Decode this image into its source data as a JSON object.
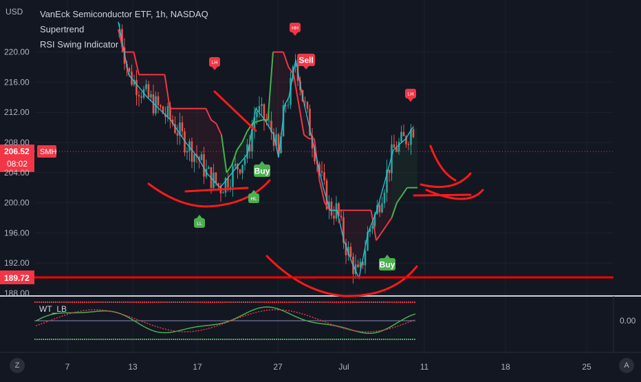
{
  "currency": "USD",
  "legend": {
    "symbol_line": "VanEck Semiconductor ETF, 1h, NASDAQ",
    "study1": "Supertrend",
    "study2": "RSI Swing Indicator"
  },
  "chart_data": {
    "type": "candlestick",
    "symbol": "SMH",
    "y_ticks": [
      "220.00",
      "216.00",
      "212.00",
      "208.00",
      "204.00",
      "200.00",
      "196.00",
      "192.00",
      "188.00"
    ],
    "x_ticks": [
      "7",
      "13",
      "17",
      "27",
      "Jul",
      "11",
      "18",
      "25"
    ],
    "ylim": [
      188,
      224
    ],
    "last_price": {
      "label": "SMH",
      "value": "206.52",
      "countdown": "08:02"
    },
    "horizontal_line": {
      "value": "189.72",
      "color": "#ff0000"
    },
    "series": [
      {
        "name": "Supertrend",
        "values": [
          223,
          220,
          220,
          220,
          217,
          217,
          217,
          217,
          217,
          217,
          212.5,
          212.5,
          212.5,
          212.5,
          212.5,
          212.5,
          212.5,
          212.5,
          211,
          210.5,
          209,
          204,
          205,
          207,
          208,
          209.5,
          210.5,
          210.8,
          211,
          211,
          220,
          220,
          220,
          218,
          217,
          213,
          209,
          208.5,
          208.5,
          203,
          200,
          199,
          199,
          199,
          199,
          199,
          199,
          199,
          199,
          199,
          195,
          196,
          197,
          198,
          200,
          201,
          202,
          202,
          202
        ]
      },
      {
        "name": "RSI Swing",
        "values": [
          224,
          217,
          214,
          211,
          208,
          206,
          204,
          203,
          202,
          206.5,
          212.5,
          211,
          209,
          206,
          213,
          214,
          219,
          214,
          208,
          202,
          199,
          199,
          195,
          192,
          190,
          196,
          199,
          203,
          207,
          208.5,
          210
        ]
      }
    ],
    "annotations": [
      {
        "text": "Buy",
        "color": "#4caf50"
      },
      {
        "text": "Sell",
        "color": "#f23645"
      },
      {
        "text": "Buy",
        "color": "#4caf50"
      },
      {
        "text": "LL",
        "color": "#4caf50"
      },
      {
        "text": "HL",
        "color": "#4caf50"
      },
      {
        "text": "LH",
        "color": "#f23645"
      },
      {
        "text": "HH",
        "color": "#f23645"
      },
      {
        "text": "LH",
        "color": "#f23645"
      }
    ]
  },
  "indicator": {
    "name": "WT_LB",
    "value": "0.00"
  },
  "buttons": {
    "timezone": "Z",
    "auto": "A"
  }
}
